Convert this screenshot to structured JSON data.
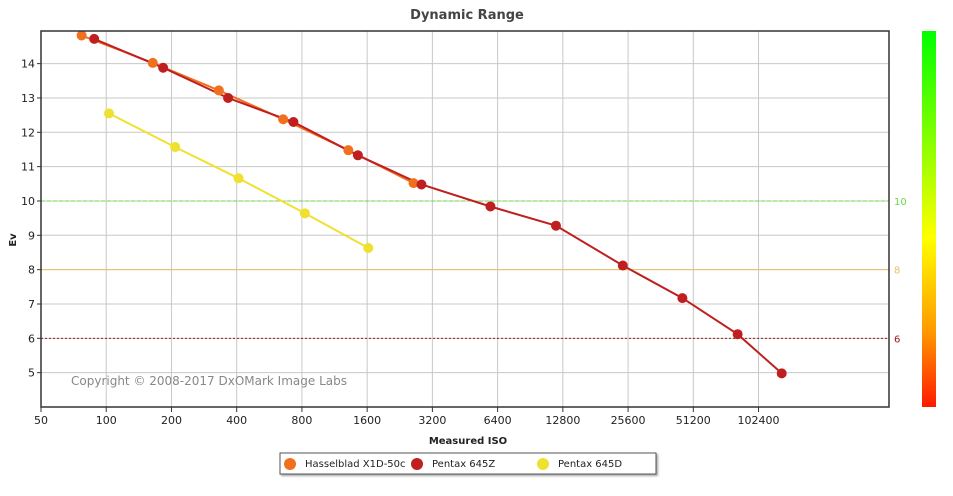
{
  "chart_data": {
    "type": "line",
    "title": "Dynamic Range",
    "xlabel": "Measured ISO",
    "ylabel": "Ev",
    "x_scale": "log2",
    "x_ticks": [
      50,
      100,
      200,
      400,
      800,
      1600,
      3200,
      6400,
      12800,
      25600,
      51200,
      102400
    ],
    "y_ticks": [
      5,
      6,
      7,
      8,
      9,
      10,
      11,
      12,
      13,
      14
    ],
    "xlim": [
      50,
      409600
    ],
    "ylim": [
      4,
      14.95
    ],
    "grid": true,
    "reference_lines": [
      {
        "y": 10,
        "label": "10",
        "color": "#66dd44",
        "style": "dashed"
      },
      {
        "y": 8,
        "label": "8",
        "color": "#f0c060",
        "style": "solid"
      },
      {
        "y": 6,
        "label": "6",
        "color": "#a01818",
        "style": "dotted"
      }
    ],
    "series": [
      {
        "name": "Hasselblad X1D-50c",
        "color": "#f07020",
        "points": [
          [
            77,
            14.82
          ],
          [
            164,
            14.02
          ],
          [
            331,
            13.22
          ],
          [
            655,
            12.38
          ],
          [
            1310,
            11.48
          ],
          [
            2620,
            10.52
          ]
        ]
      },
      {
        "name": "Pentax 645Z",
        "color": "#c01f1f",
        "points": [
          [
            88,
            14.72
          ],
          [
            183,
            13.88
          ],
          [
            365,
            13.0
          ],
          [
            731,
            12.3
          ],
          [
            1450,
            11.33
          ],
          [
            2850,
            10.48
          ],
          [
            5930,
            9.84
          ],
          [
            11900,
            9.28
          ],
          [
            24200,
            8.12
          ],
          [
            45600,
            7.17
          ],
          [
            82000,
            6.12
          ],
          [
            131000,
            4.98
          ]
        ]
      },
      {
        "name": "Pentax 645D",
        "color": "#f0e030",
        "points": [
          [
            103,
            12.55
          ],
          [
            208,
            11.57
          ],
          [
            408,
            10.66
          ],
          [
            826,
            9.64
          ],
          [
            1620,
            8.63
          ]
        ]
      }
    ],
    "legend_position": "bottom",
    "annotation": "Copyright © 2008-2017 DxOMark Image Labs",
    "color_scale": [
      "#00ff00",
      "#ffff00",
      "#ff9900",
      "#ff1a00"
    ]
  }
}
